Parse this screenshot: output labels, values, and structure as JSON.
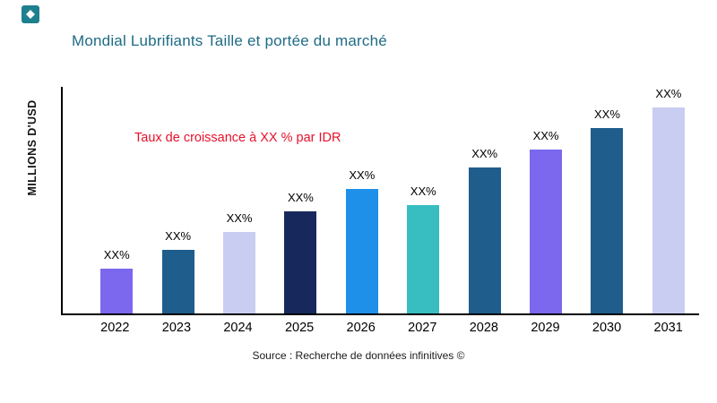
{
  "logo": {
    "color": "#1e7f8f"
  },
  "header": {
    "title": "Mondial Lubrifiants Taille et portée du marché",
    "title_color": "#1e6b85"
  },
  "annotation": {
    "text": "Taux de croissance à XX % par IDR",
    "color": "#e8112a"
  },
  "axis": {
    "y_label": "MILLIONS D'USD"
  },
  "source": {
    "text": "Source : Recherche de données infinitives ©"
  },
  "chart_data": {
    "type": "bar",
    "title": "Mondial Lubrifiants Taille et portée du marché",
    "xlabel": "",
    "ylabel": "MILLIONS D'USD",
    "categories": [
      "2022",
      "2023",
      "2024",
      "2025",
      "2026",
      "2027",
      "2028",
      "2029",
      "2030",
      "2031"
    ],
    "values": [
      50,
      72,
      92,
      115,
      140,
      122,
      164,
      184,
      209,
      232
    ],
    "value_labels": [
      "XX%",
      "XX%",
      "XX%",
      "XX%",
      "XX%",
      "XX%",
      "XX%",
      "XX%",
      "XX%",
      "XX%"
    ],
    "bar_colors": [
      "#7b68ee",
      "#1f5d8c",
      "#c9cdf2",
      "#17295c",
      "#1e90ea",
      "#38bdc0",
      "#1f5d8c",
      "#7b68ee",
      "#1f5d8c",
      "#c9cdf2"
    ],
    "ylim": [
      0,
      255
    ],
    "values_note": "Axis unlabeled in source; values are relative bar heights (arbitrary units). All bars annotated 'XX%'.",
    "annotation": "Taux de croissance à XX % par IDR",
    "grid": false,
    "legend": "none"
  }
}
